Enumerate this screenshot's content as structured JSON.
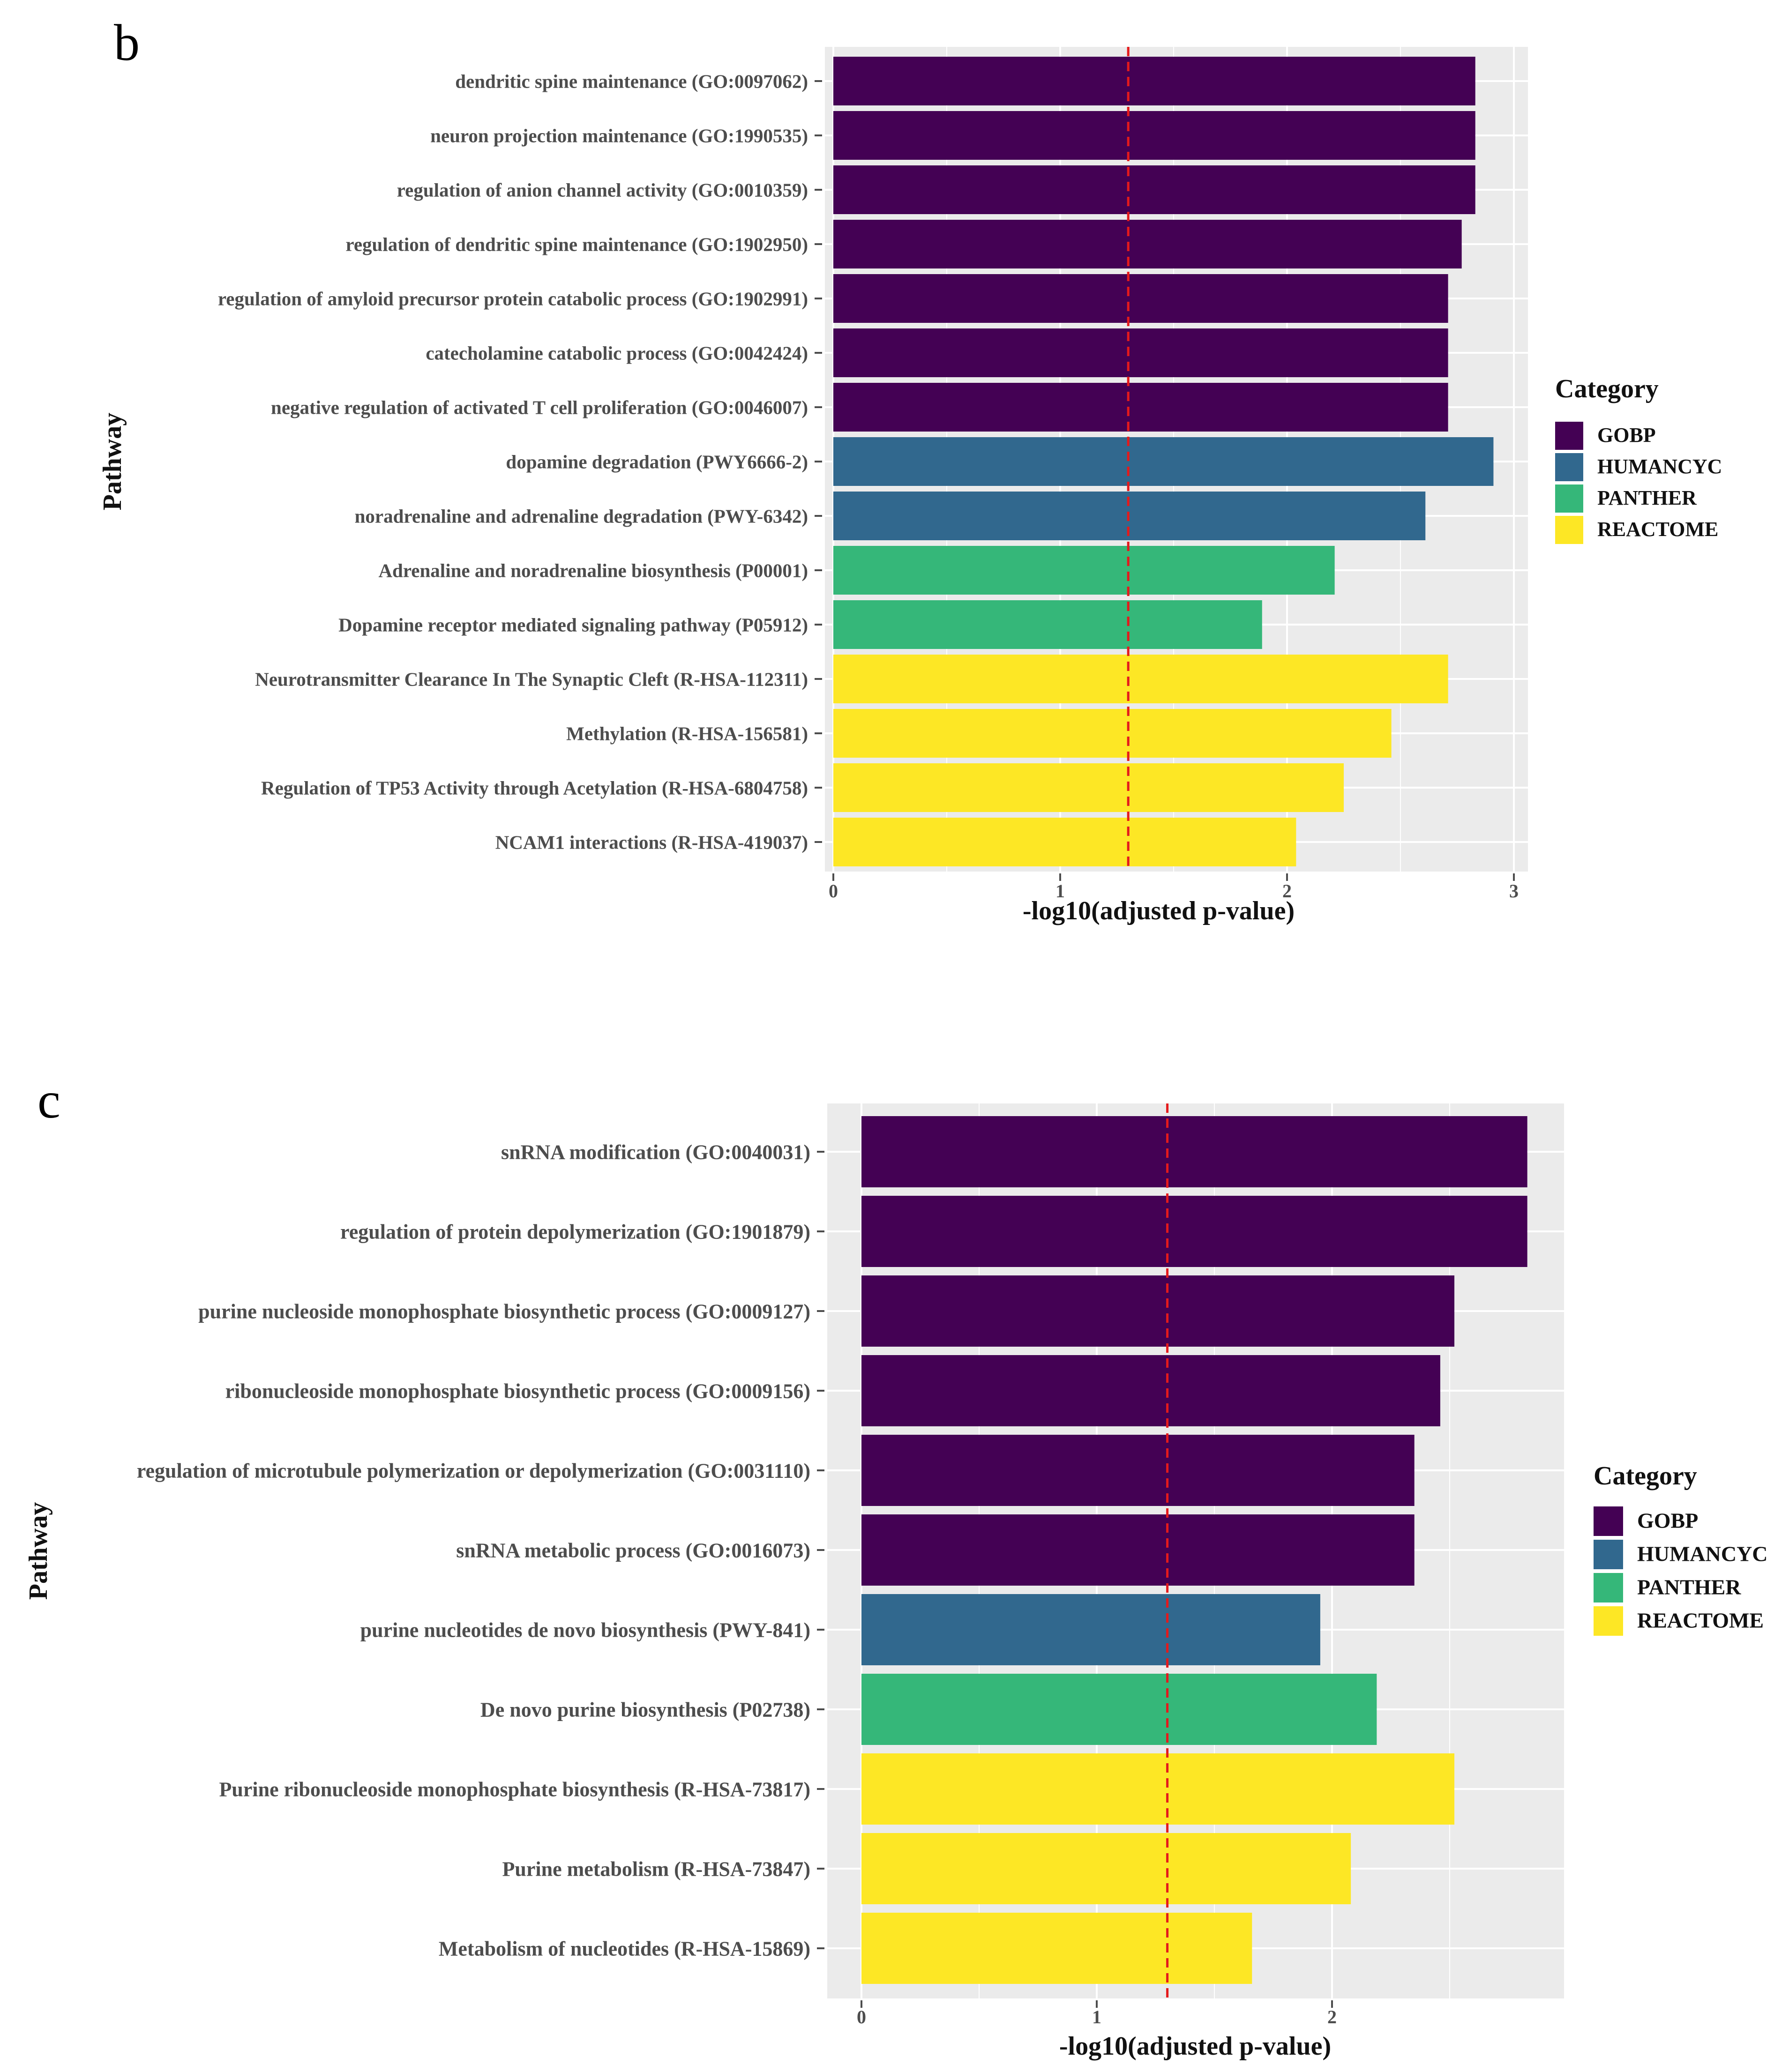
{
  "colors": {
    "GOBP": "#440154",
    "HUMANCYC": "#31688e",
    "PANTHER": "#35b779",
    "REACTOME": "#fde725",
    "panel_bg": "#ebebeb",
    "grid": "#ffffff",
    "threshold": "#e41a1c"
  },
  "chart_data": [
    {
      "type": "bar",
      "orientation": "horizontal",
      "panel_label": "b",
      "xlabel": "-log10(adjusted p-value)",
      "ylabel": "Pathway",
      "xlim": [
        0,
        3.05
      ],
      "xticks": [
        "0",
        "1",
        "2",
        "3"
      ],
      "threshold": 1.3,
      "legend": {
        "title": "Category",
        "entries": [
          "GOBP",
          "HUMANCYC",
          "PANTHER",
          "REACTOME"
        ],
        "position": "right"
      },
      "bars": [
        {
          "label": "dendritic spine maintenance (GO:0097062)",
          "value": 2.83,
          "category": "GOBP"
        },
        {
          "label": "neuron projection maintenance (GO:1990535)",
          "value": 2.83,
          "category": "GOBP"
        },
        {
          "label": "regulation of anion channel activity (GO:0010359)",
          "value": 2.83,
          "category": "GOBP"
        },
        {
          "label": "regulation of dendritic spine maintenance (GO:1902950)",
          "value": 2.77,
          "category": "GOBP"
        },
        {
          "label": "regulation of amyloid precursor protein catabolic process (GO:1902991)",
          "value": 2.71,
          "category": "GOBP"
        },
        {
          "label": "catecholamine catabolic process (GO:0042424)",
          "value": 2.71,
          "category": "GOBP"
        },
        {
          "label": "negative regulation of activated T cell proliferation (GO:0046007)",
          "value": 2.71,
          "category": "GOBP"
        },
        {
          "label": "dopamine degradation (PWY6666-2)",
          "value": 2.91,
          "category": "HUMANCYC"
        },
        {
          "label": "noradrenaline and adrenaline degradation (PWY-6342)",
          "value": 2.61,
          "category": "HUMANCYC"
        },
        {
          "label": "Adrenaline and noradrenaline biosynthesis (P00001)",
          "value": 2.21,
          "category": "PANTHER"
        },
        {
          "label": "Dopamine receptor mediated signaling pathway (P05912)",
          "value": 1.89,
          "category": "PANTHER"
        },
        {
          "label": "Neurotransmitter Clearance In The Synaptic Cleft (R-HSA-112311)",
          "value": 2.71,
          "category": "REACTOME"
        },
        {
          "label": "Methylation (R-HSA-156581)",
          "value": 2.46,
          "category": "REACTOME"
        },
        {
          "label": "Regulation of TP53 Activity through Acetylation (R-HSA-6804758)",
          "value": 2.25,
          "category": "REACTOME"
        },
        {
          "label": "NCAM1 interactions (R-HSA-419037)",
          "value": 2.04,
          "category": "REACTOME"
        }
      ]
    },
    {
      "type": "bar",
      "orientation": "horizontal",
      "panel_label": "c",
      "xlabel": "-log10(adjusted p-value)",
      "ylabel": "Pathway",
      "xlim": [
        0,
        2.95
      ],
      "xticks": [
        "0",
        "1",
        "2"
      ],
      "threshold": 1.3,
      "legend": {
        "title": "Category",
        "entries": [
          "GOBP",
          "HUMANCYC",
          "PANTHER",
          "REACTOME"
        ],
        "position": "right"
      },
      "bars": [
        {
          "label": "snRNA modification (GO:0040031)",
          "value": 2.83,
          "category": "GOBP"
        },
        {
          "label": "regulation of protein depolymerization (GO:1901879)",
          "value": 2.83,
          "category": "GOBP"
        },
        {
          "label": "purine nucleoside monophosphate biosynthetic process (GO:0009127)",
          "value": 2.52,
          "category": "GOBP"
        },
        {
          "label": "ribonucleoside monophosphate biosynthetic process (GO:0009156)",
          "value": 2.46,
          "category": "GOBP"
        },
        {
          "label": "regulation of microtubule polymerization or depolymerization (GO:0031110)",
          "value": 2.35,
          "category": "GOBP"
        },
        {
          "label": "snRNA metabolic process (GO:0016073)",
          "value": 2.35,
          "category": "GOBP"
        },
        {
          "label": "purine nucleotides de novo biosynthesis (PWY-841)",
          "value": 1.95,
          "category": "HUMANCYC"
        },
        {
          "label": "De novo purine biosynthesis (P02738)",
          "value": 2.19,
          "category": "PANTHER"
        },
        {
          "label": "Purine ribonucleoside monophosphate biosynthesis (R-HSA-73817)",
          "value": 2.52,
          "category": "REACTOME"
        },
        {
          "label": "Purine metabolism (R-HSA-73847)",
          "value": 2.08,
          "category": "REACTOME"
        },
        {
          "label": "Metabolism of nucleotides (R-HSA-15869)",
          "value": 1.66,
          "category": "REACTOME"
        }
      ]
    }
  ]
}
